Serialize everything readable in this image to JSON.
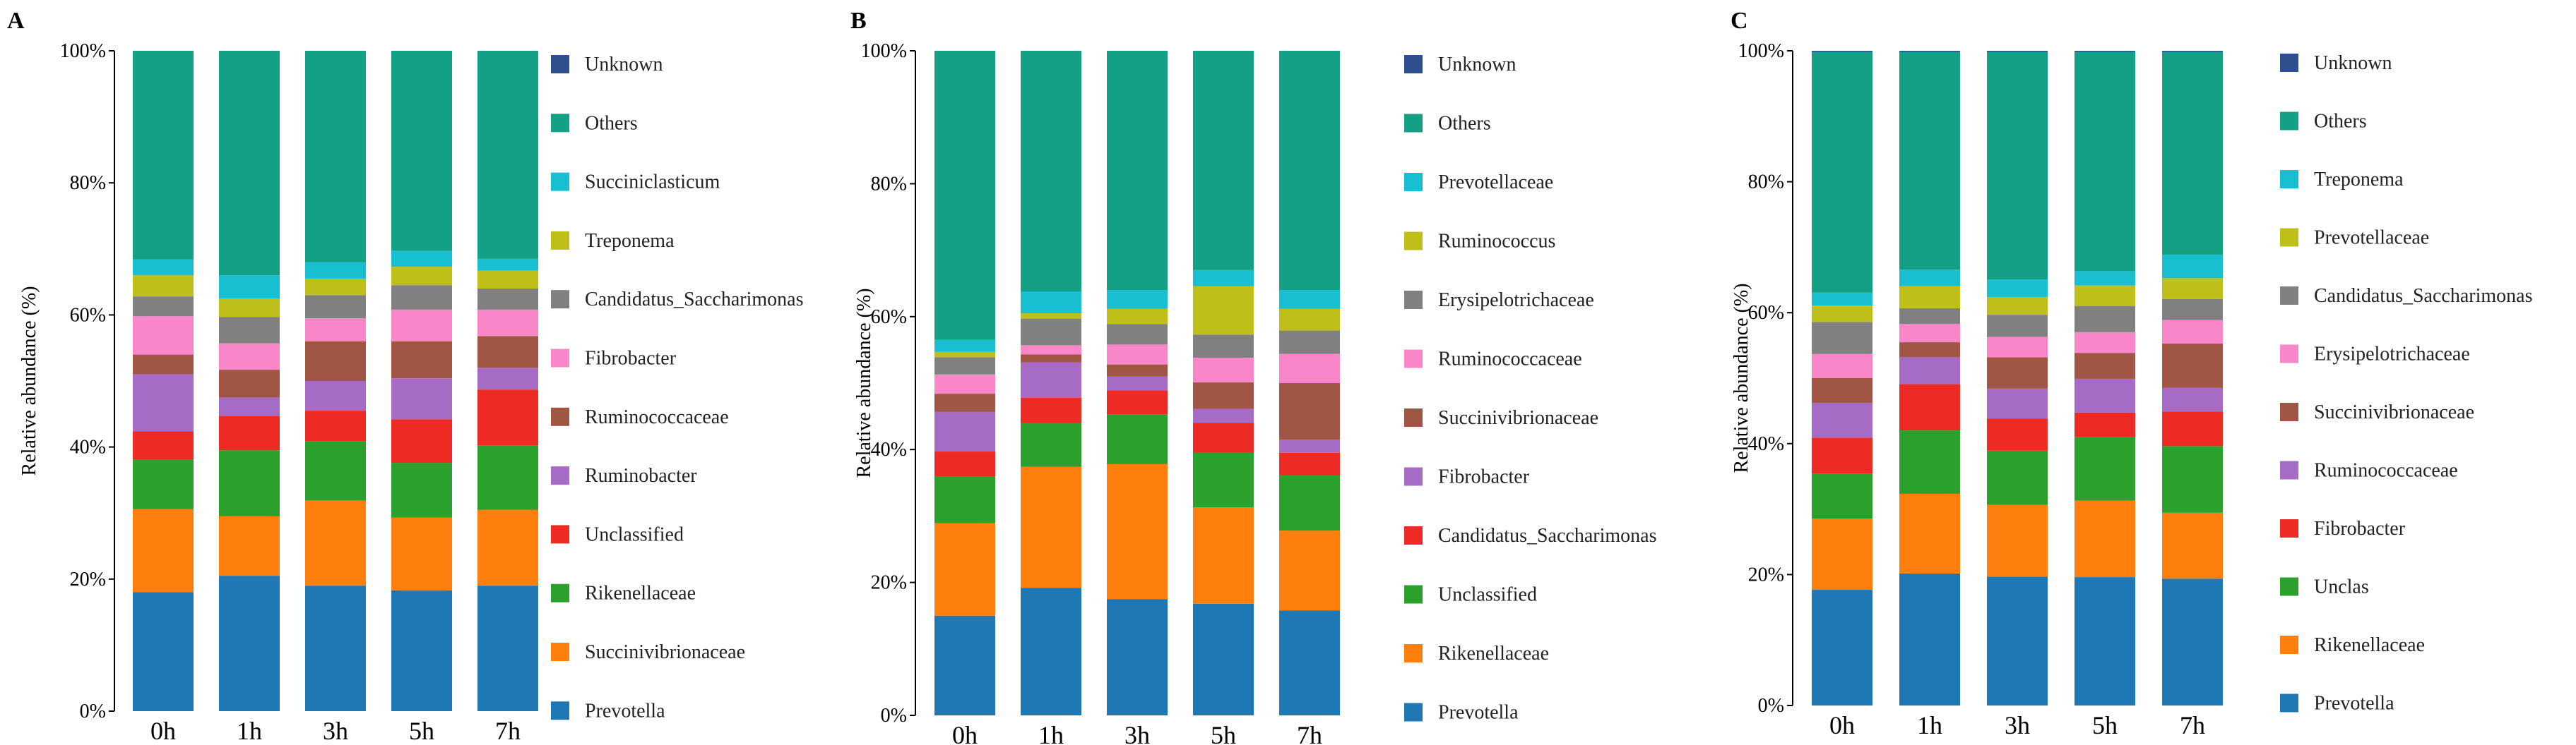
{
  "chart_data": [
    {
      "panel": "A",
      "type": "bar",
      "stacked": true,
      "ylabel": "Relative abundance (%)",
      "yticks": [
        "0%",
        "20%",
        "40%",
        "60%",
        "80%",
        "100%"
      ],
      "ylim": [
        0,
        100
      ],
      "categories": [
        "0h",
        "1h",
        "3h",
        "5h",
        "7h"
      ],
      "series": [
        {
          "name": "Prevotella",
          "color": "#1f77b4",
          "values": [
            18,
            20.5,
            19,
            18.3,
            19
          ]
        },
        {
          "name": "Succinivibrionaceae",
          "color": "#ff7f0e",
          "values": [
            12.6,
            9,
            12.9,
            11,
            11.5
          ]
        },
        {
          "name": "Rikenellaceae",
          "color": "#2ca02c",
          "values": [
            7.5,
            10,
            9,
            8.3,
            9.7
          ]
        },
        {
          "name": "Unclassified",
          "color": "#ee2a24",
          "values": [
            4.3,
            5.2,
            4.6,
            6.6,
            8.5
          ]
        },
        {
          "name": "Ruminobacter",
          "color": "#a66bc4",
          "values": [
            8.6,
            2.8,
            4.5,
            6.2,
            3.3
          ]
        },
        {
          "name": "Ruminococcaceae",
          "color": "#a05545",
          "values": [
            3,
            4.2,
            6,
            5.6,
            4.8
          ]
        },
        {
          "name": "Fibrobacter",
          "color": "#f986c8",
          "values": [
            5.8,
            4,
            3.5,
            4.8,
            4
          ]
        },
        {
          "name": "Candidatus_Saccharimonas",
          "color": "#808080",
          "values": [
            3,
            4,
            3.5,
            3.7,
            3.2
          ]
        },
        {
          "name": "Treponema",
          "color": "#bfbf19",
          "values": [
            3.2,
            2.8,
            2.5,
            2.8,
            2.7
          ]
        },
        {
          "name": "Succiniclasticum",
          "color": "#17bfd0",
          "values": [
            2.4,
            3.5,
            2.5,
            2.4,
            1.8
          ]
        },
        {
          "name": "Others",
          "color": "#13a084",
          "values": [
            31.6,
            34,
            32,
            30.3,
            31.5
          ]
        },
        {
          "name": "Unknown",
          "color": "#2f4f8f",
          "values": [
            0,
            0,
            0,
            0,
            0
          ]
        }
      ]
    },
    {
      "panel": "B",
      "type": "bar",
      "stacked": true,
      "ylabel": "Relative abundance (%)",
      "yticks": [
        "0%",
        "20%",
        "40%",
        "60%",
        "80%",
        "100%"
      ],
      "ylim": [
        0,
        100
      ],
      "categories": [
        "0h",
        "1h",
        "3h",
        "5h",
        "7h"
      ],
      "series": [
        {
          "name": "Prevotella",
          "color": "#1f77b4",
          "values": [
            15,
            19.2,
            17.5,
            16.8,
            15.8
          ]
        },
        {
          "name": "Rikenellaceae",
          "color": "#ff7f0e",
          "values": [
            13.9,
            18.2,
            20.3,
            14.5,
            12
          ]
        },
        {
          "name": "Unclassified",
          "color": "#2ca02c",
          "values": [
            7,
            6.6,
            7.5,
            8.2,
            8.3
          ]
        },
        {
          "name": "Candidatus_Saccharimonas",
          "color": "#ee2a24",
          "values": [
            3.8,
            3.8,
            3.6,
            4.5,
            3.4
          ]
        },
        {
          "name": "Fibrobacter",
          "color": "#a66bc4",
          "values": [
            6,
            5.3,
            2.1,
            2.1,
            2
          ]
        },
        {
          "name": "Succinivibrionaceae",
          "color": "#a05545",
          "values": [
            2.7,
            1.2,
            1.8,
            4,
            8.5
          ]
        },
        {
          "name": "Ruminococcaceae",
          "color": "#f986c8",
          "values": [
            2.9,
            1.4,
            3,
            3.7,
            4.4
          ]
        },
        {
          "name": "Erysipelotrichaceae",
          "color": "#808080",
          "values": [
            2.6,
            4,
            3.1,
            3.5,
            3.5
          ]
        },
        {
          "name": "Ruminococcus",
          "color": "#bfbf19",
          "values": [
            0.8,
            0.8,
            2.3,
            7.3,
            3.3
          ]
        },
        {
          "name": "Prevotellaceae",
          "color": "#17bfd0",
          "values": [
            1.8,
            3.3,
            2.8,
            2.4,
            2.8
          ]
        },
        {
          "name": "Others",
          "color": "#13a084",
          "values": [
            43.5,
            36.2,
            36,
            33,
            36
          ]
        },
        {
          "name": "Unknown",
          "color": "#2f4f8f",
          "values": [
            0,
            0,
            0,
            0,
            0
          ]
        }
      ]
    },
    {
      "panel": "C",
      "type": "bar",
      "stacked": true,
      "ylabel": "Relative abundance (%)",
      "yticks": [
        "0%",
        "20%",
        "40%",
        "60%",
        "80%",
        "100%"
      ],
      "ylim": [
        0,
        100
      ],
      "categories": [
        "0h",
        "1h",
        "3h",
        "5h",
        "7h"
      ],
      "series": [
        {
          "name": "Prevotella",
          "color": "#1f77b4",
          "values": [
            17.7,
            20.2,
            19.7,
            19.8,
            19.4
          ]
        },
        {
          "name": "Rikenellaceae",
          "color": "#ff7f0e",
          "values": [
            10.9,
            12.2,
            11,
            11.8,
            10.1
          ]
        },
        {
          "name": "Unclas",
          "color": "#2ca02c",
          "values": [
            6.9,
            9.7,
            8.3,
            9.8,
            10.2
          ]
        },
        {
          "name": "Fibrobacter",
          "color": "#ee2a24",
          "values": [
            5.5,
            7.1,
            4.9,
            3.8,
            5.3
          ]
        },
        {
          "name": "Ruminococcaceae",
          "color": "#a66bc4",
          "values": [
            5.3,
            4.1,
            4.6,
            5.2,
            3.6
          ]
        },
        {
          "name": "Succinivibrionaceae",
          "color": "#a05545",
          "values": [
            3.8,
            2.3,
            4.8,
            4,
            6.8
          ]
        },
        {
          "name": "Erysipelotrichaceae",
          "color": "#f986c8",
          "values": [
            3.7,
            2.8,
            3.1,
            3.2,
            3.6
          ]
        },
        {
          "name": "Candidatus_Saccharimonas",
          "color": "#808080",
          "values": [
            4.9,
            2.4,
            3.4,
            4,
            3.2
          ]
        },
        {
          "name": "Prevotellaceae",
          "color": "#bfbf19",
          "values": [
            2.5,
            3.4,
            2.7,
            3.2,
            3.2
          ]
        },
        {
          "name": "Treponema",
          "color": "#17bfd0",
          "values": [
            2,
            2.5,
            2.7,
            2.2,
            3.6
          ]
        },
        {
          "name": "Others",
          "color": "#13a084",
          "values": [
            36.8,
            33.3,
            34.8,
            33.8,
            31
          ]
        },
        {
          "name": "Unknown",
          "color": "#2f4f8f",
          "values": [
            0.2,
            0.2,
            0.2,
            0.2,
            0.2
          ]
        }
      ]
    }
  ]
}
